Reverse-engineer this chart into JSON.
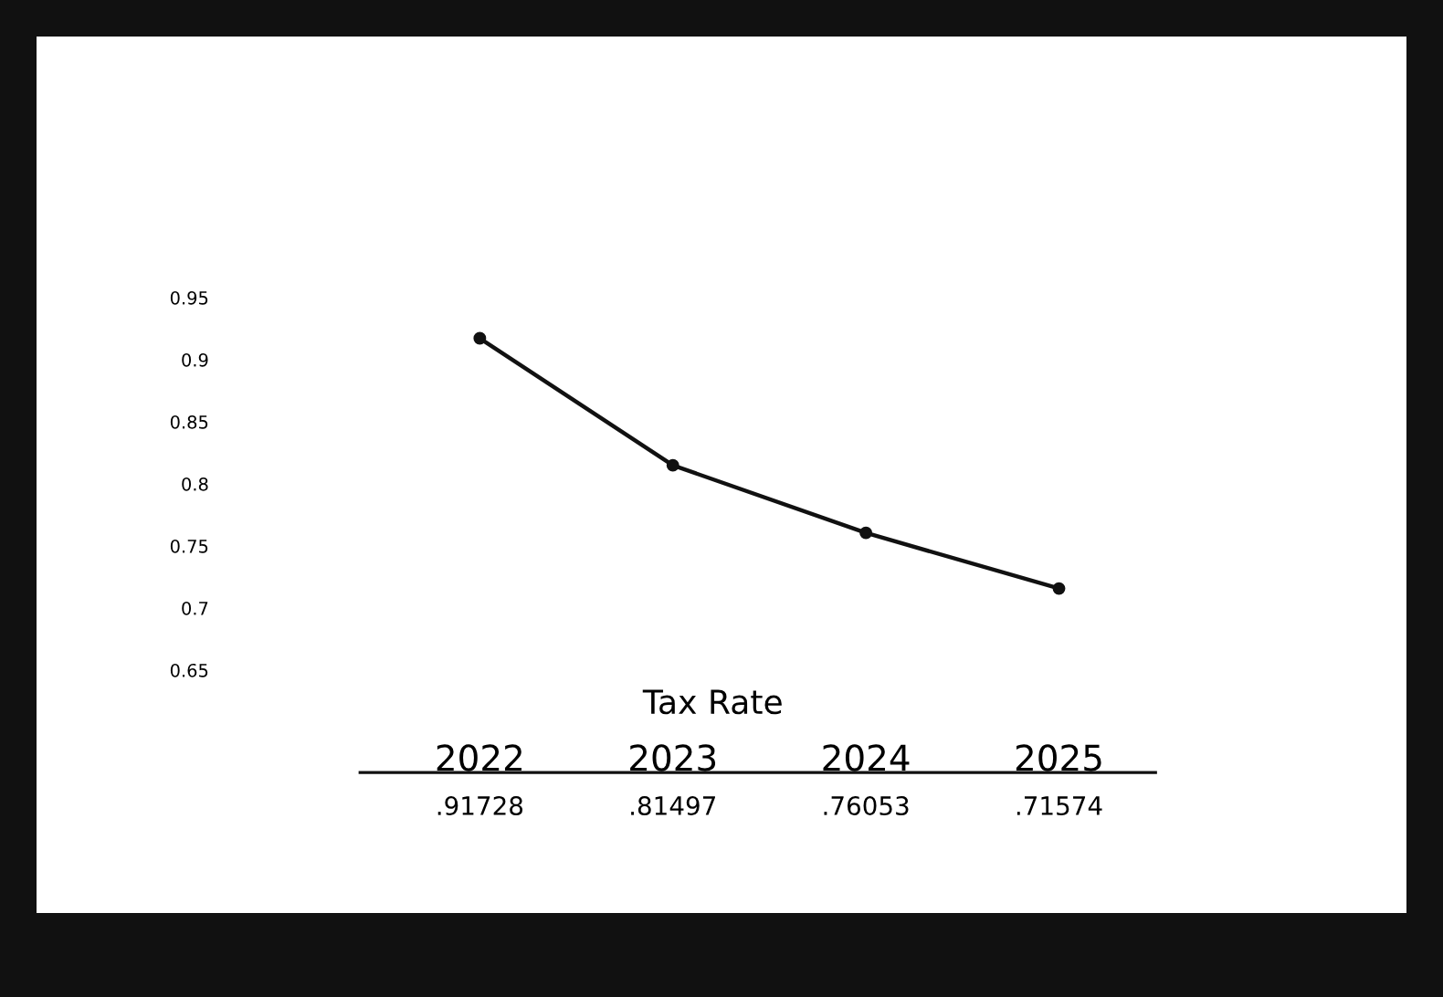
{
  "chart_data": {
    "type": "line",
    "xlabel": "Tax Rate",
    "categories": [
      "2022",
      "2023",
      "2024",
      "2025"
    ],
    "series": [
      {
        "color": "#111111",
        "values": [
          0.91728,
          0.81497,
          0.76053,
          0.71574
        ],
        "value_labels": [
          ".91728",
          ".81497",
          ".76053",
          ".71574"
        ]
      }
    ],
    "ylim": [
      0.65,
      0.95
    ],
    "yticks": [
      0.65,
      0.7,
      0.75,
      0.8,
      0.85,
      0.9,
      0.95
    ],
    "marker": "circle",
    "line_style": "solid",
    "grid": false
  }
}
